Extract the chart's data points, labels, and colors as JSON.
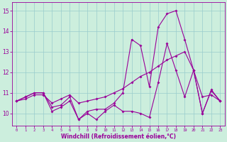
{
  "x": [
    0,
    1,
    2,
    3,
    4,
    5,
    6,
    7,
    8,
    9,
    10,
    11,
    12,
    13,
    14,
    15,
    16,
    17,
    18,
    19,
    20,
    21,
    22,
    23
  ],
  "y_top": [
    10.6,
    10.8,
    11.0,
    11.0,
    10.3,
    10.4,
    10.8,
    9.7,
    10.1,
    10.2,
    10.2,
    10.5,
    11.0,
    13.6,
    13.3,
    11.3,
    14.2,
    14.85,
    15.0,
    13.6,
    12.1,
    10.0,
    11.15,
    10.6
  ],
  "y_mid": [
    10.6,
    10.7,
    10.9,
    10.9,
    10.5,
    10.7,
    10.9,
    10.5,
    10.6,
    10.7,
    10.8,
    11.0,
    11.2,
    11.5,
    11.8,
    12.0,
    12.3,
    12.6,
    12.8,
    13.0,
    12.1,
    10.8,
    10.9,
    10.6
  ],
  "y_bot": [
    10.6,
    10.8,
    11.0,
    11.0,
    10.1,
    10.3,
    10.6,
    9.7,
    10.0,
    9.7,
    10.1,
    10.4,
    10.1,
    10.1,
    10.0,
    9.8,
    11.5,
    13.4,
    12.1,
    10.8,
    12.1,
    10.0,
    11.1,
    10.6
  ],
  "line_color": "#990099",
  "bg_color": "#cceedd",
  "grid_color": "#99cccc",
  "ylim": [
    9.4,
    15.4
  ],
  "xlim": [
    -0.5,
    23.5
  ],
  "yticks": [
    10,
    11,
    12,
    13,
    14,
    15
  ],
  "xticks": [
    0,
    1,
    2,
    3,
    4,
    5,
    6,
    7,
    8,
    9,
    10,
    11,
    12,
    13,
    14,
    15,
    16,
    17,
    18,
    19,
    20,
    21,
    22,
    23
  ],
  "xlabel": "Windchill (Refroidissement éolien,°C)"
}
